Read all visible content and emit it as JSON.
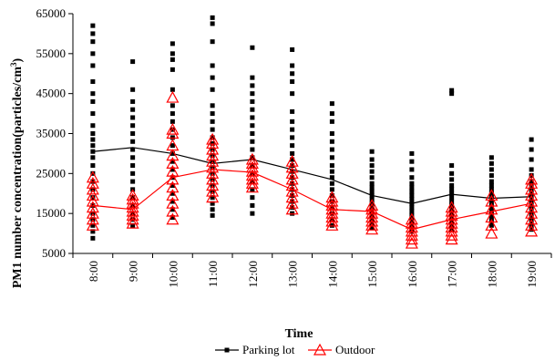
{
  "chart_data": {
    "type": "scatter",
    "title": "",
    "xlabel": "Time",
    "ylabel_main": "PM1 number concentration(particles/cm",
    "ylabel_sup": "3",
    "ylabel_end": ")",
    "ylim": [
      5000,
      65000
    ],
    "yticks": [
      "5000",
      "15000",
      "25000",
      "35000",
      "45000",
      "55000",
      "65000"
    ],
    "ytick_values": [
      5000,
      15000,
      25000,
      35000,
      45000,
      55000,
      65000
    ],
    "categories": [
      "8:00",
      "9:00",
      "10:00",
      "11:00",
      "12:00",
      "13:00",
      "14:00",
      "15:00",
      "16:00",
      "17:00",
      "18:00",
      "19:00"
    ],
    "grid": false,
    "legend_position": "bottom",
    "series": [
      {
        "name": "Parking lot",
        "color": "#000000",
        "marker": "square",
        "mean": [
          30500,
          31500,
          30000,
          27500,
          28500,
          26000,
          23500,
          19500,
          17500,
          19800,
          18800,
          19200
        ],
        "points": [
          [
            8800,
            10500,
            12000,
            13500,
            15000,
            17000,
            19000,
            21000,
            23000,
            25000,
            27000,
            29000,
            30500,
            32000,
            33500,
            35000,
            37000,
            40000,
            43000,
            45000,
            48000,
            52000,
            55000,
            58000,
            60000,
            62000
          ],
          [
            12000,
            13500,
            15000,
            17000,
            19000,
            21000,
            23000,
            25000,
            27000,
            29000,
            31000,
            33000,
            35000,
            37000,
            39000,
            41000,
            43000,
            46000,
            53000
          ],
          [
            14000,
            16000,
            18000,
            20000,
            22000,
            24000,
            26000,
            28000,
            30000,
            32000,
            34000,
            36000,
            38000,
            40000,
            42000,
            46000,
            51000,
            53500,
            55000,
            57500
          ],
          [
            14500,
            16000,
            17500,
            19000,
            20500,
            22000,
            23500,
            25000,
            26500,
            28000,
            29500,
            31000,
            32500,
            34000,
            36000,
            38000,
            40000,
            42000,
            46000,
            49000,
            52000,
            58000,
            62500,
            64000
          ],
          [
            15000,
            17000,
            19000,
            21000,
            23000,
            25000,
            27000,
            29000,
            31000,
            33000,
            35000,
            37000,
            39000,
            41000,
            43000,
            45000,
            47000,
            49000,
            56500
          ],
          [
            15000,
            16500,
            18000,
            19500,
            21000,
            22500,
            24000,
            25500,
            27000,
            28500,
            30000,
            32000,
            34000,
            36000,
            38000,
            40500,
            45000,
            48000,
            50000,
            52000,
            56000
          ],
          [
            12000,
            13500,
            15000,
            16500,
            18000,
            19500,
            21000,
            22500,
            24000,
            25500,
            27000,
            29000,
            31000,
            33000,
            35000,
            38000,
            40000,
            42500
          ],
          [
            11500,
            12500,
            13500,
            14500,
            15500,
            16500,
            17500,
            18500,
            19500,
            20500,
            21500,
            22500,
            24000,
            25500,
            27000,
            28500,
            30500
          ],
          [
            10500,
            11500,
            12500,
            13500,
            14500,
            15500,
            16500,
            17500,
            18500,
            19500,
            20500,
            21500,
            22500,
            24000,
            26000,
            28000,
            30000
          ],
          [
            11000,
            12000,
            13000,
            14000,
            15000,
            16000,
            17000,
            18000,
            19000,
            20000,
            21000,
            22000,
            23500,
            25000,
            27000,
            45000,
            45800
          ],
          [
            12000,
            13000,
            14000,
            15000,
            16000,
            17000,
            18000,
            19000,
            20000,
            21000,
            22000,
            23000,
            24500,
            26000,
            27500,
            29000
          ],
          [
            11000,
            12000,
            13000,
            14000,
            15000,
            16000,
            17000,
            18000,
            19000,
            20000,
            21000,
            22000,
            23000,
            24500,
            26000,
            28500,
            31000,
            33500
          ]
        ]
      },
      {
        "name": "Outdoor",
        "color": "#ff0000",
        "marker": "triangle",
        "mean": [
          17000,
          16000,
          24000,
          26000,
          25300,
          21000,
          16000,
          15500,
          11000,
          13500,
          15500,
          17500
        ],
        "points": [
          [
            12000,
            13500,
            15000,
            16500,
            18000,
            19500,
            21000,
            22500,
            24000
          ],
          [
            12500,
            13500,
            14500,
            15500,
            16500,
            17500,
            18500,
            19500
          ],
          [
            13500,
            15500,
            17500,
            19500,
            21500,
            23500,
            25500,
            27500,
            29500,
            32000,
            35000,
            36000,
            44000
          ],
          [
            19000,
            20500,
            22000,
            23500,
            25000,
            26500,
            28000,
            29500,
            31000,
            32500,
            33500
          ],
          [
            21500,
            22500,
            23500,
            24500,
            25500,
            26500,
            27500,
            28500
          ],
          [
            16000,
            17500,
            19000,
            20500,
            22000,
            23500,
            25000,
            26500,
            28000
          ],
          [
            12000,
            13000,
            14000,
            15000,
            16000,
            17000,
            18000,
            19000
          ],
          [
            11000,
            12000,
            13000,
            14000,
            15000,
            16000,
            17000
          ],
          [
            7500,
            8500,
            9500,
            10500,
            11500,
            12500,
            13500
          ],
          [
            8500,
            9500,
            10500,
            11500,
            12500,
            13500,
            14500,
            15500,
            16500
          ],
          [
            10000,
            12000,
            14000,
            16000,
            18000,
            19500
          ],
          [
            10500,
            12000,
            13500,
            15000,
            16500,
            18000,
            19500,
            21000,
            22500,
            23500
          ]
        ]
      }
    ]
  }
}
